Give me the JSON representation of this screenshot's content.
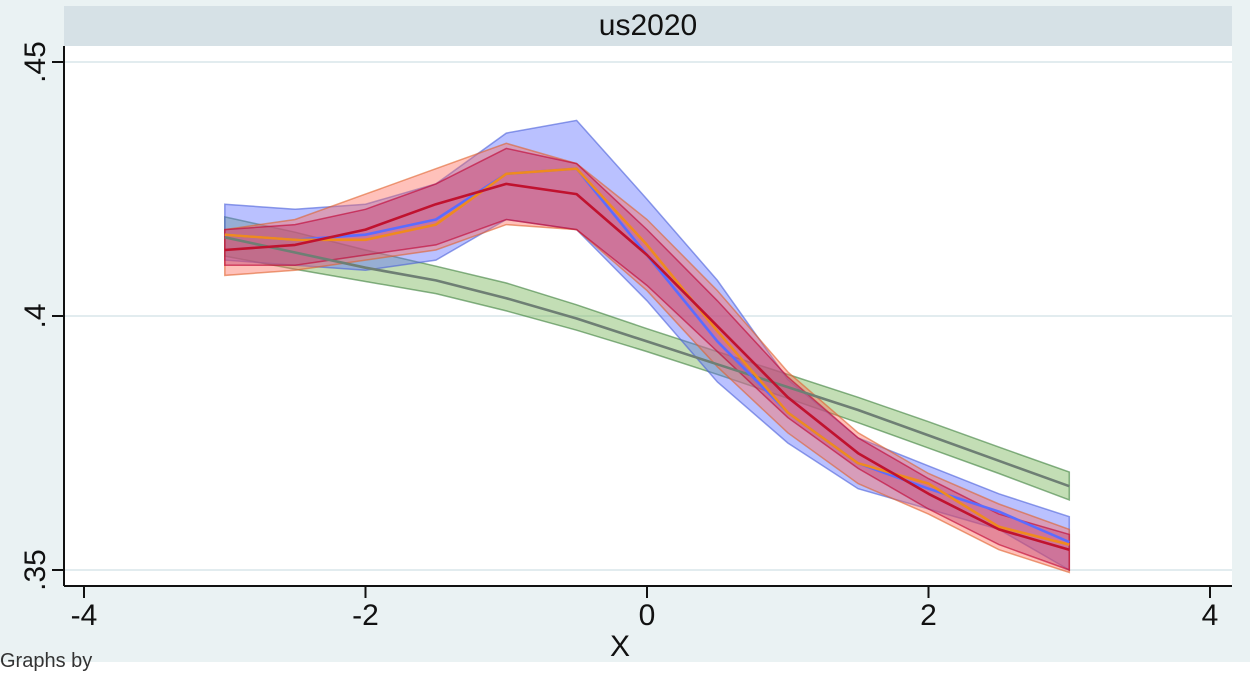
{
  "chart_data": {
    "type": "area",
    "title": "us2020",
    "xlabel": "X",
    "ylabel": "",
    "xlim": [
      -4.2,
      4.2
    ],
    "ylim": [
      0.35,
      0.45
    ],
    "xticks": [
      -4,
      -2,
      0,
      2,
      4
    ],
    "xtick_labels": [
      "-4",
      "-2",
      "0",
      "2",
      "4"
    ],
    "yticks": [
      0.35,
      0.4,
      0.45
    ],
    "ytick_labels": [
      ".35",
      ".4",
      ".45"
    ],
    "grid": "horizontal",
    "legend": "none",
    "x": [
      -3,
      -2.5,
      -2,
      -1.5,
      -1,
      -0.5,
      0,
      0.5,
      1,
      1.5,
      2,
      2.5,
      3
    ],
    "series": [
      {
        "color": "#3c7f3c",
        "fill": "#6fb04f",
        "line_color": "#6e7f74",
        "values": [
          0.4155,
          0.4125,
          0.4095,
          0.407,
          0.4035,
          0.3995,
          0.395,
          0.3905,
          0.386,
          0.3815,
          0.3765,
          0.3715,
          0.3665
        ],
        "lower": [
          0.4118,
          0.4092,
          0.4068,
          0.4044,
          0.401,
          0.3972,
          0.393,
          0.3885,
          0.3838,
          0.379,
          0.374,
          0.369,
          0.3638
        ],
        "upper": [
          0.4195,
          0.4165,
          0.413,
          0.4098,
          0.4065,
          0.4022,
          0.3975,
          0.393,
          0.3885,
          0.384,
          0.3792,
          0.3742,
          0.3693
        ]
      },
      {
        "color": "#4a5fd9",
        "fill": "#5b6cff",
        "line_color": "#5b6cff",
        "values": [
          0.416,
          0.415,
          0.416,
          0.419,
          0.428,
          0.429,
          0.412,
          0.395,
          0.381,
          0.371,
          0.366,
          0.3615,
          0.3555
        ],
        "lower": [
          0.411,
          0.41,
          0.409,
          0.411,
          0.419,
          0.417,
          0.403,
          0.387,
          0.375,
          0.366,
          0.362,
          0.358,
          0.35
        ],
        "upper": [
          0.422,
          0.421,
          0.422,
          0.426,
          0.436,
          0.4385,
          0.423,
          0.407,
          0.3875,
          0.376,
          0.3705,
          0.365,
          0.3605
        ]
      },
      {
        "color": "#e0602a",
        "fill": "#ff6b5b",
        "line_color": "#ef8a1f",
        "values": [
          0.416,
          0.415,
          0.415,
          0.418,
          0.428,
          0.429,
          0.414,
          0.397,
          0.381,
          0.371,
          0.367,
          0.3585,
          0.355
        ],
        "lower": [
          0.408,
          0.409,
          0.411,
          0.413,
          0.418,
          0.417,
          0.405,
          0.39,
          0.377,
          0.367,
          0.361,
          0.354,
          0.3495
        ],
        "upper": [
          0.417,
          0.419,
          0.424,
          0.429,
          0.434,
          0.43,
          0.419,
          0.405,
          0.389,
          0.377,
          0.369,
          0.363,
          0.358
        ]
      },
      {
        "color": "#c00030",
        "fill": "#c23b6e",
        "line_color": "#c0122f",
        "values": [
          0.413,
          0.414,
          0.417,
          0.422,
          0.426,
          0.424,
          0.412,
          0.398,
          0.384,
          0.373,
          0.365,
          0.358,
          0.354
        ],
        "lower": [
          0.41,
          0.41,
          0.412,
          0.414,
          0.419,
          0.417,
          0.406,
          0.393,
          0.38,
          0.37,
          0.362,
          0.355,
          0.35
        ],
        "upper": [
          0.417,
          0.418,
          0.421,
          0.426,
          0.433,
          0.43,
          0.417,
          0.403,
          0.388,
          0.376,
          0.368,
          0.361,
          0.357
        ]
      }
    ]
  },
  "caption_fragment": "Graphs by"
}
